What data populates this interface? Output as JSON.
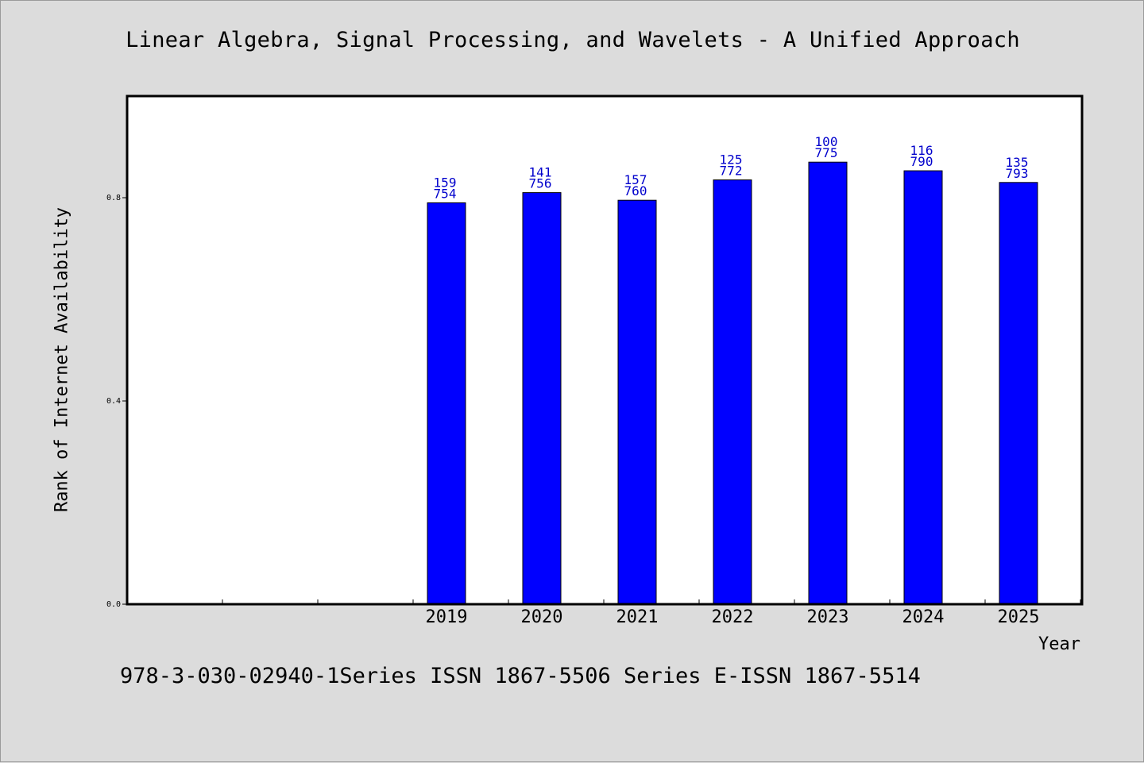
{
  "header": {
    "title": "Linear Algebra, Signal Processing, and Wavelets - A Unified Approach"
  },
  "footer": {
    "text": "978-3-030-02940-1Series ISSN 1867-5506 Series E-ISSN 1867-5514"
  },
  "colors": {
    "bar": "#0000ff",
    "label": "#0000cc",
    "background": "#dcdcdc",
    "plot_background": "#ffffff"
  },
  "chart_data": {
    "type": "bar",
    "title": "Linear Algebra, Signal Processing, and Wavelets - A Unified Approach",
    "xlabel": "Year",
    "ylabel": "Rank of Internet Availability",
    "ylim": [
      0,
      1.0
    ],
    "yticks": [
      "0.0",
      "0.4",
      "0.8"
    ],
    "categories": [
      "2019",
      "2020",
      "2021",
      "2022",
      "2023",
      "2024",
      "2025"
    ],
    "values": [
      0.79,
      0.81,
      0.795,
      0.835,
      0.87,
      0.853,
      0.83
    ],
    "data_labels": [
      [
        "159",
        "754"
      ],
      [
        "141",
        "756"
      ],
      [
        "157",
        "760"
      ],
      [
        "125",
        "772"
      ],
      [
        "100",
        "775"
      ],
      [
        "116",
        "790"
      ],
      [
        "135",
        "793"
      ]
    ],
    "grid": false,
    "legend": "none"
  }
}
